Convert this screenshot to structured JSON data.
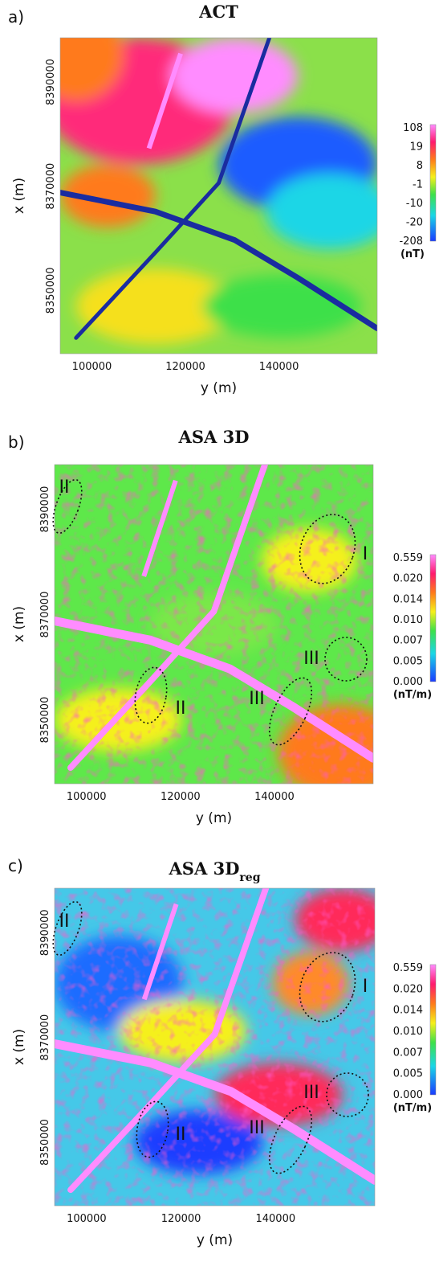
{
  "panels": [
    {
      "label": "a)",
      "title": "ACT",
      "y_ticks": [
        "8390000",
        "8370000",
        "8350000"
      ],
      "x_ticks": [
        "100000",
        "120000",
        "140000"
      ],
      "x_label": "y (m)",
      "y_label": "x (m)",
      "colorbar": {
        "labels": [
          "108",
          "19",
          "8",
          "-1",
          "-10",
          "-20",
          "-208"
        ],
        "unit": "(nT)"
      }
    },
    {
      "label": "b)",
      "title": "ASA 3D",
      "y_ticks": [
        "8390000",
        "8370000",
        "8350000"
      ],
      "x_ticks": [
        "100000",
        "120000",
        "140000"
      ],
      "x_label": "y (m)",
      "y_label": "x (m)",
      "colorbar": {
        "labels": [
          "0.559",
          "0.020",
          "0.014",
          "0.010",
          "0.007",
          "0.005",
          "0.000"
        ],
        "unit": "(nT/m)"
      },
      "annotations": [
        "II",
        "I",
        "III",
        "II",
        "III"
      ]
    },
    {
      "label": "c)",
      "title": "ASA 3D",
      "title_subscript": "reg",
      "y_ticks": [
        "8390000",
        "8370000",
        "8350000"
      ],
      "x_ticks": [
        "100000",
        "120000",
        "140000"
      ],
      "x_label": "y (m)",
      "y_label": "x (m)",
      "colorbar": {
        "labels": [
          "0.559",
          "0.020",
          "0.014",
          "0.010",
          "0.007",
          "0.005",
          "0.000"
        ],
        "unit": "(nT/m)"
      },
      "annotations": [
        "II",
        "I",
        "III",
        "II",
        "III"
      ]
    }
  ]
}
